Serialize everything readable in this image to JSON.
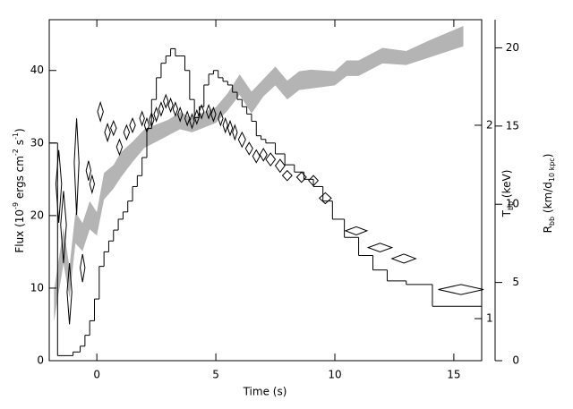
{
  "chart_data": {
    "type": "step",
    "xlabel": "Time (s)",
    "ylabel": [
      "Flux (10",
      "-9",
      " ergs cm",
      "-2",
      " s",
      "-1",
      ")"
    ],
    "y2label": [
      "T",
      "bb",
      " (keV)"
    ],
    "y3label": [
      "R",
      "bb",
      " (km/d",
      "10 kpc",
      ")"
    ],
    "xlim": [
      -2,
      16.17
    ],
    "xticks": [
      0,
      5,
      10,
      15
    ],
    "ylim": [
      0,
      47
    ],
    "yticks": [
      0,
      10,
      20,
      30,
      40
    ],
    "y2lim": [
      0.86,
      2.92
    ],
    "y2ticks": [
      1,
      2
    ],
    "y2log": true,
    "y3lim": [
      0,
      21.8
    ],
    "y3ticks": [
      0,
      5,
      10,
      15,
      20
    ],
    "series": [
      {
        "type": "step",
        "color": "#000000",
        "bins": [
          -2,
          -1.65,
          -1.0,
          -0.7,
          -0.5,
          -0.3,
          -0.1,
          0.1,
          0.3,
          0.5,
          0.7,
          0.9,
          1.1,
          1.3,
          1.5,
          1.7,
          1.9,
          2.1,
          2.3,
          2.5,
          2.7,
          2.9,
          3.1,
          3.3,
          3.5,
          3.7,
          3.9,
          4.1,
          4.3,
          4.5,
          4.7,
          4.9,
          5.1,
          5.3,
          5.5,
          5.7,
          5.9,
          6.1,
          6.3,
          6.5,
          6.7,
          6.9,
          7.1,
          7.5,
          7.9,
          8.3,
          8.7,
          9.1,
          9.5,
          9.9,
          10.4,
          11.0,
          11.6,
          12.2,
          13.0,
          14.1,
          16.17
        ],
        "values": [
          30,
          0.7,
          1.2,
          2,
          3.5,
          5.5,
          8.5,
          13,
          15,
          16.5,
          18,
          19.5,
          20.5,
          22,
          24,
          25.5,
          28,
          32,
          36,
          39,
          41,
          42,
          43,
          42,
          42,
          40,
          36,
          33.5,
          35,
          38,
          39.5,
          40,
          39,
          38.5,
          38,
          37,
          36,
          35,
          34,
          33,
          31,
          30.5,
          30,
          28.5,
          27,
          26,
          25,
          24,
          22,
          19.5,
          17,
          14.5,
          12.5,
          11,
          10.5,
          7.5
        ]
      },
      {
        "type": "diamond",
        "axis": "y2",
        "color": "#000000",
        "x": [
          -1.6,
          -1.4,
          -1.15,
          -0.85,
          -0.6,
          -0.35,
          -0.2,
          0.15,
          0.45,
          0.7,
          0.95,
          1.25,
          1.5,
          1.9,
          2.1,
          2.3,
          2.5,
          2.7,
          2.9,
          3.1,
          3.3,
          3.5,
          3.8,
          4.0,
          4.2,
          4.4,
          4.7,
          4.9,
          5.2,
          5.4,
          5.6,
          5.8,
          6.1,
          6.4,
          6.7,
          7.0,
          7.3,
          7.7,
          8.0,
          8.6,
          9.1,
          9.6,
          10.9,
          11.9,
          12.9,
          15.3
        ],
        "values": [
          1.62,
          1.4,
          1.1,
          1.75,
          1.2,
          1.7,
          1.62,
          2.1,
          1.95,
          1.98,
          1.85,
          1.95,
          2.0,
          2.05,
          2.0,
          2.04,
          2.08,
          2.12,
          2.18,
          2.15,
          2.12,
          2.08,
          2.05,
          2.03,
          2.06,
          2.1,
          2.1,
          2.08,
          2.05,
          2.0,
          1.98,
          1.95,
          1.9,
          1.84,
          1.79,
          1.8,
          1.77,
          1.73,
          1.67,
          1.66,
          1.64,
          1.54,
          1.37,
          1.29,
          1.24,
          1.11
        ],
        "errors": [
          0.21,
          0.18,
          0.12,
          0.3,
          0.06,
          0.06,
          0.05,
          0.07,
          0.06,
          0.05,
          0.05,
          0.05,
          0.05,
          0.05,
          0.05,
          0.05,
          0.05,
          0.05,
          0.05,
          0.05,
          0.05,
          0.05,
          0.05,
          0.05,
          0.05,
          0.05,
          0.05,
          0.05,
          0.05,
          0.05,
          0.05,
          0.05,
          0.05,
          0.04,
          0.04,
          0.04,
          0.04,
          0.04,
          0.03,
          0.03,
          0.03,
          0.03,
          0.02,
          0.02,
          0.02,
          0.02
        ],
        "xerr": [
          0.12,
          0.12,
          0.1,
          0.1,
          0.1,
          0.1,
          0.1,
          0.12,
          0.12,
          0.12,
          0.12,
          0.12,
          0.12,
          0.1,
          0.1,
          0.1,
          0.1,
          0.1,
          0.1,
          0.1,
          0.1,
          0.1,
          0.1,
          0.1,
          0.1,
          0.1,
          0.1,
          0.1,
          0.1,
          0.1,
          0.1,
          0.1,
          0.15,
          0.15,
          0.15,
          0.15,
          0.2,
          0.2,
          0.2,
          0.2,
          0.2,
          0.25,
          0.45,
          0.5,
          0.5,
          0.95
        ]
      },
      {
        "type": "band",
        "axis": "y3",
        "color": "#b4b4b4",
        "x": [
          -1.8,
          -1.4,
          -1.15,
          -0.9,
          -0.6,
          -0.3,
          0,
          0.3,
          0.7,
          1.0,
          1.5,
          2.0,
          2.5,
          3.0,
          3.5,
          4.0,
          4.5,
          5.0,
          5.5,
          6.0,
          6.5,
          7.0,
          7.5,
          8.0,
          8.5,
          9.0,
          10.0,
          10.5,
          11.0,
          12.0,
          13.0,
          14.0,
          15.4
        ],
        "upper": [
          4.5,
          8.5,
          6.0,
          9.5,
          8.8,
          10.2,
          9.5,
          12.0,
          12.5,
          13.3,
          14.0,
          14.8,
          15.1,
          15.4,
          15.9,
          15.5,
          15.9,
          16.2,
          17.1,
          18.3,
          17.2,
          18.0,
          18.8,
          17.9,
          18.5,
          18.6,
          18.5,
          19.2,
          19.2,
          20.0,
          19.8,
          20.5,
          21.4
        ],
        "lower": [
          2.5,
          6.2,
          4.0,
          7.5,
          7.0,
          8.4,
          8.0,
          10.3,
          11.0,
          11.7,
          12.7,
          13.6,
          14.0,
          14.4,
          14.8,
          14.6,
          14.9,
          15.2,
          16.0,
          17.0,
          15.8,
          16.9,
          17.6,
          16.7,
          17.3,
          17.4,
          17.6,
          18.2,
          18.2,
          19.0,
          18.9,
          19.4,
          20.1
        ]
      }
    ]
  }
}
